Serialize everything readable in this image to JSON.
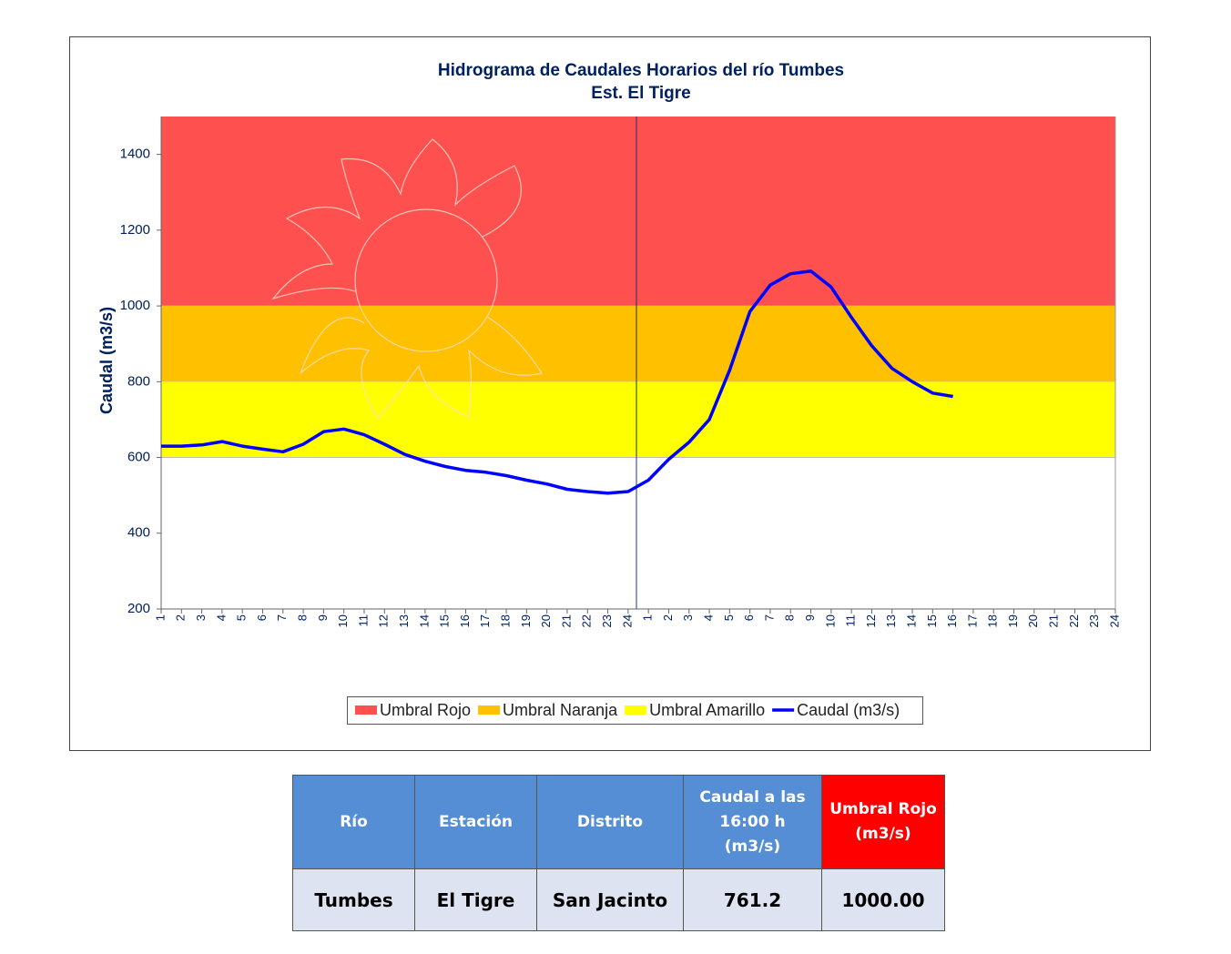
{
  "chart_data": {
    "type": "line",
    "title": "Hidrograma  de Caudales Horarios  del río Tumbes",
    "subtitle": "Est. El Tigre",
    "y_label": "Caudal (m3/s)",
    "categories": [
      "1",
      "2",
      "3",
      "4",
      "5",
      "6",
      "7",
      "8",
      "9",
      "10",
      "11",
      "12",
      "13",
      "14",
      "15",
      "16",
      "17",
      "18",
      "19",
      "20",
      "21",
      "22",
      "23",
      "24",
      "1",
      "2",
      "3",
      "4",
      "5",
      "6",
      "7",
      "8",
      "9",
      "10",
      "11",
      "12",
      "13",
      "14",
      "15",
      "16",
      "17",
      "18",
      "19",
      "20",
      "21",
      "22",
      "23",
      "24"
    ],
    "series": [
      {
        "name": "Caudal (m3/s)",
        "color": "#0000ff",
        "values": [
          630,
          630,
          633,
          642,
          630,
          622,
          615,
          635,
          668,
          675,
          660,
          635,
          608,
          590,
          576,
          566,
          561,
          552,
          540,
          530,
          516,
          510,
          506,
          510,
          540,
          595,
          640,
          700,
          830,
          985,
          1055,
          1085,
          1092,
          1050,
          970,
          895,
          835,
          800,
          770,
          761.2,
          null,
          null,
          null,
          null,
          null,
          null,
          null,
          null
        ]
      }
    ],
    "bands": [
      {
        "name": "Umbral Rojo",
        "color": "#ff5050",
        "lower": 1000,
        "upper": 1500
      },
      {
        "name": "Umbral Naranja",
        "color": "#ffc000",
        "lower": 800,
        "upper": 1000
      },
      {
        "name": "Umbral Amarillo",
        "color": "#ffff00",
        "lower": 600,
        "upper": 800
      }
    ],
    "ylim": [
      200,
      1500
    ],
    "yticks": [
      200,
      400,
      600,
      800,
      1000,
      1200,
      1400
    ]
  },
  "table": {
    "headers": [
      "Río",
      "Estación",
      "Distrito",
      "Caudal a las 16:00 h (m3/s)",
      "Umbral Rojo (m3/s)"
    ],
    "rows": [
      [
        "Tumbes",
        "El Tigre",
        "San Jacinto",
        "761.2",
        "1000.00"
      ]
    ]
  }
}
